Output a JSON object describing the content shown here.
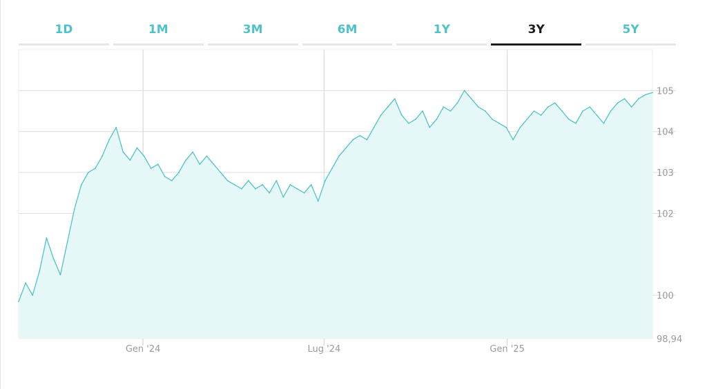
{
  "tabs": [
    {
      "label": "1D",
      "active": false
    },
    {
      "label": "1M",
      "active": false
    },
    {
      "label": "3M",
      "active": false
    },
    {
      "label": "6M",
      "active": false
    },
    {
      "label": "1Y",
      "active": false
    },
    {
      "label": "3Y",
      "active": true
    },
    {
      "label": "5Y",
      "active": false
    }
  ],
  "colors": {
    "accent": "#4fc2c8",
    "area_fill": "#e6f7f8",
    "active_tab": "#1c1c1c",
    "grid": "#dedede"
  },
  "chart_data": {
    "type": "area",
    "title": "",
    "xlabel": "",
    "ylabel": "",
    "ylim": [
      98.94,
      106
    ],
    "y_axis_position": "right",
    "grid": true,
    "legend": "none",
    "y_ticks": [
      {
        "value": 100,
        "label": "100"
      },
      {
        "value": 102,
        "label": "102"
      },
      {
        "value": 103,
        "label": "103"
      },
      {
        "value": 104,
        "label": "104"
      },
      {
        "value": 105,
        "label": "105"
      },
      {
        "value": 98.94,
        "label": "98,94"
      }
    ],
    "x_ticks": [
      {
        "date": "2024-01-01",
        "label": "Gen '24"
      },
      {
        "date": "2024-07-01",
        "label": "Lug '24"
      },
      {
        "date": "2025-01-01",
        "label": "Gen '25"
      }
    ],
    "x_range": [
      "2023-08-29",
      "2025-05-27"
    ],
    "series": [
      {
        "x": [
          "2023-08-29",
          "2023-09-05",
          "2023-09-12",
          "2023-09-19",
          "2023-09-26",
          "2023-10-03",
          "2023-10-10",
          "2023-10-17",
          "2023-10-24",
          "2023-10-31",
          "2023-11-07",
          "2023-11-14",
          "2023-11-21",
          "2023-11-28",
          "2023-12-05",
          "2023-12-12",
          "2023-12-19",
          "2023-12-26",
          "2024-01-02",
          "2024-01-09",
          "2024-01-16",
          "2024-01-23",
          "2024-01-30",
          "2024-02-06",
          "2024-02-13",
          "2024-02-20",
          "2024-02-27",
          "2024-03-05",
          "2024-03-12",
          "2024-03-19",
          "2024-03-26",
          "2024-04-02",
          "2024-04-09",
          "2024-04-16",
          "2024-04-23",
          "2024-04-30",
          "2024-05-07",
          "2024-05-14",
          "2024-05-21",
          "2024-05-28",
          "2024-06-04",
          "2024-06-11",
          "2024-06-18",
          "2024-06-25",
          "2024-07-02",
          "2024-07-09",
          "2024-07-16",
          "2024-07-23",
          "2024-07-30",
          "2024-08-06",
          "2024-08-13",
          "2024-08-20",
          "2024-08-27",
          "2024-09-03",
          "2024-09-10",
          "2024-09-17",
          "2024-09-24",
          "2024-10-01",
          "2024-10-08",
          "2024-10-15",
          "2024-10-22",
          "2024-10-29",
          "2024-11-05",
          "2024-11-12",
          "2024-11-19",
          "2024-11-26",
          "2024-12-03",
          "2024-12-10",
          "2024-12-17",
          "2024-12-24",
          "2024-12-31",
          "2025-01-07",
          "2025-01-14",
          "2025-01-21",
          "2025-01-28",
          "2025-02-04",
          "2025-02-11",
          "2025-02-18",
          "2025-02-25",
          "2025-03-04",
          "2025-03-11",
          "2025-03-18",
          "2025-03-25",
          "2025-04-01",
          "2025-04-08",
          "2025-04-15",
          "2025-04-22",
          "2025-04-29",
          "2025-05-06",
          "2025-05-13",
          "2025-05-20",
          "2025-05-27"
        ],
        "values": [
          99.85,
          100.3,
          100.0,
          100.6,
          101.4,
          100.9,
          100.5,
          101.3,
          102.1,
          102.7,
          103.0,
          103.1,
          103.4,
          103.8,
          104.1,
          103.5,
          103.3,
          103.6,
          103.4,
          103.1,
          103.2,
          102.9,
          102.8,
          103.0,
          103.3,
          103.5,
          103.2,
          103.4,
          103.2,
          103.0,
          102.8,
          102.7,
          102.6,
          102.8,
          102.6,
          102.7,
          102.5,
          102.8,
          102.4,
          102.7,
          102.6,
          102.5,
          102.7,
          102.3,
          102.8,
          103.1,
          103.4,
          103.6,
          103.8,
          103.9,
          103.8,
          104.1,
          104.4,
          104.6,
          104.8,
          104.4,
          104.2,
          104.3,
          104.5,
          104.1,
          104.3,
          104.6,
          104.5,
          104.7,
          105.0,
          104.8,
          104.6,
          104.5,
          104.3,
          104.2,
          104.1,
          103.8,
          104.1,
          104.3,
          104.5,
          104.4,
          104.6,
          104.7,
          104.5,
          104.3,
          104.2,
          104.5,
          104.6,
          104.4,
          104.2,
          104.5,
          104.7,
          104.8,
          104.6,
          104.8,
          104.9,
          104.95
        ]
      }
    ]
  }
}
